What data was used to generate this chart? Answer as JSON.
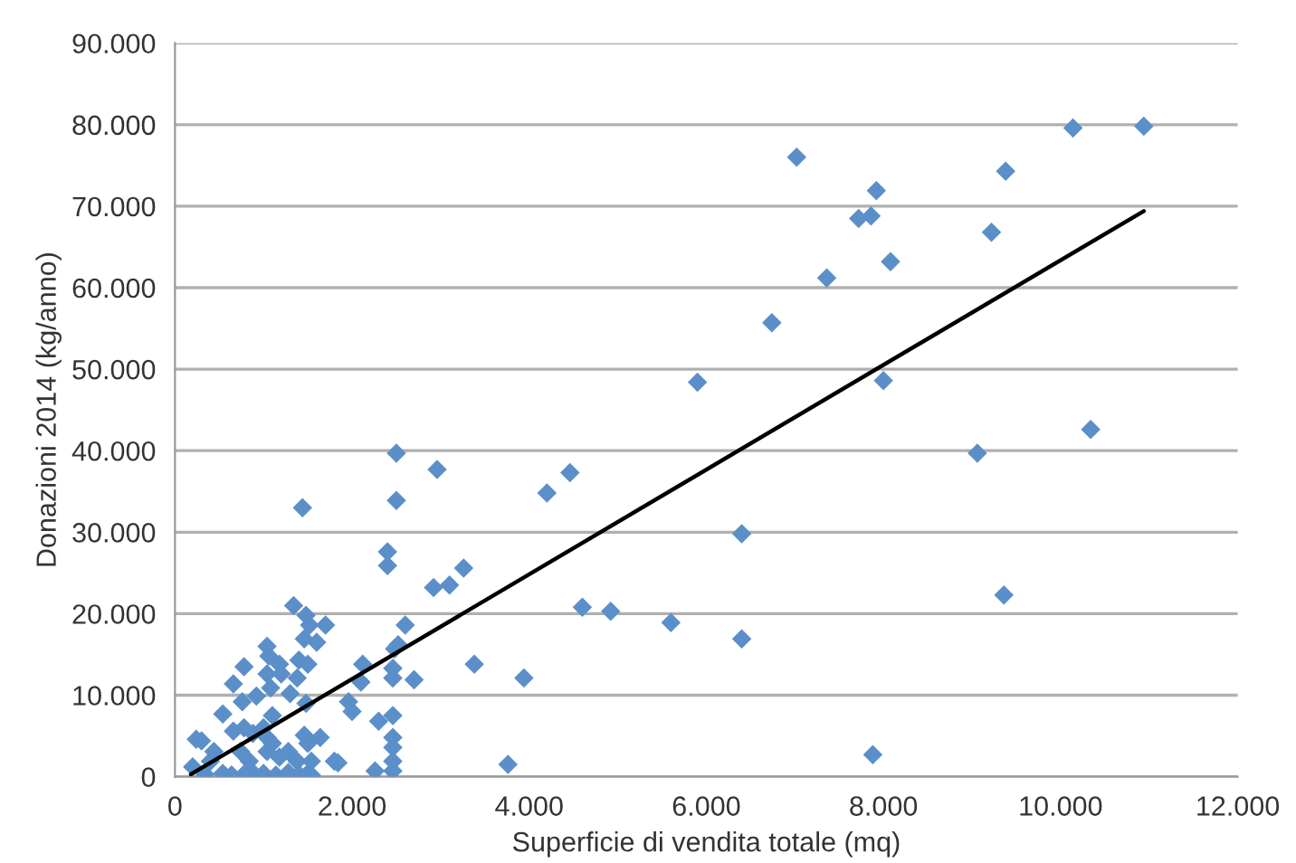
{
  "chart_data": {
    "type": "scatter",
    "xlabel": "Superficie di vendita totale (mq)",
    "ylabel": "Donazioni 2014 (kg/anno)",
    "xlim": [
      0,
      12000
    ],
    "ylim": [
      0,
      90000
    ],
    "xticks": [
      0,
      {
        "value": 2000,
        "label": "2.000"
      },
      {
        "value": 4000,
        "label": "4.000"
      },
      {
        "value": 6000,
        "label": "6.000"
      },
      {
        "value": 8000,
        "label": "8.000"
      },
      {
        "value": 10000,
        "label": "10.000"
      },
      {
        "value": 12000,
        "label": "12.000"
      }
    ],
    "yticks": [
      0,
      {
        "value": 10000,
        "label": "10.000"
      },
      {
        "value": 20000,
        "label": "20.000"
      },
      {
        "value": 30000,
        "label": "30.000"
      },
      {
        "value": 40000,
        "label": "40.000"
      },
      {
        "value": 50000,
        "label": "50.000"
      },
      {
        "value": 60000,
        "label": "60.000"
      },
      {
        "value": 70000,
        "label": "70.000"
      },
      {
        "value": 80000,
        "label": "80.000"
      },
      {
        "value": 90000,
        "label": "90.000"
      }
    ],
    "grid": "y",
    "marker": "diamond",
    "series": [
      {
        "type": "scatter",
        "color": "#5b8fc9",
        "x": [
          7020,
          7920,
          7720,
          7860,
          8080,
          7360,
          6740,
          5900,
          8000,
          10140,
          10940,
          9380,
          9220,
          10340,
          9060,
          4460,
          4200,
          6400,
          9360,
          4600,
          4920,
          5600,
          6400,
          3940,
          3760,
          7880,
          2400,
          2400,
          3260,
          2920,
          3100,
          1340,
          1480,
          1520,
          1700,
          2600,
          1460,
          1600,
          2520,
          2480,
          1040,
          1060,
          780,
          1180,
          1200,
          1040,
          1400,
          1500,
          2120,
          3380,
          2460,
          2460,
          2700,
          2100,
          660,
          1080,
          1380,
          920,
          760,
          1300,
          1480,
          1960,
          2000,
          2300,
          2460,
          540,
          1100,
          660,
          780,
          880,
          1000,
          1040,
          1100,
          240,
          300,
          1460,
          1500,
          1640,
          1800,
          1840,
          2460,
          2460,
          2460,
          2460,
          2260,
          440,
          400,
          200,
          740,
          840,
          1040,
          1180,
          1280,
          1380,
          1540,
          340,
          540,
          640,
          800,
          900,
          1000,
          1140,
          1280,
          1400,
          1500,
          1540,
          1440,
          2500,
          2500,
          2960
        ],
        "values": [
          76000,
          71900,
          68500,
          68800,
          63200,
          61200,
          55700,
          48400,
          48600,
          79600,
          79800,
          74300,
          66800,
          42600,
          39700,
          37300,
          34800,
          29800,
          22300,
          20800,
          20300,
          18900,
          16900,
          12100,
          1500,
          2700,
          27600,
          25900,
          25600,
          23200,
          23500,
          21000,
          19800,
          18600,
          18600,
          18600,
          16900,
          16500,
          16200,
          15700,
          16000,
          14800,
          13500,
          13800,
          12600,
          12600,
          14300,
          13800,
          13800,
          13800,
          13300,
          12100,
          11900,
          11600,
          11400,
          10900,
          12100,
          9900,
          9200,
          10200,
          9000,
          9200,
          8000,
          6800,
          7500,
          7700,
          7500,
          5600,
          6000,
          5300,
          6000,
          4800,
          4100,
          4600,
          4400,
          5100,
          4100,
          4800,
          1900,
          1700,
          4800,
          3600,
          1900,
          700,
          700,
          3100,
          1900,
          1200,
          3100,
          1900,
          3100,
          2400,
          3100,
          1900,
          1900,
          300,
          400,
          200,
          500,
          300,
          400,
          200,
          500,
          300,
          400,
          200,
          33000,
          39700,
          33900,
          37700
        ]
      },
      {
        "type": "line",
        "color": "#000000",
        "marker": "none",
        "line_style": "solid",
        "x": [
          180,
          10940
        ],
        "values": [
          300,
          69400
        ]
      }
    ]
  }
}
